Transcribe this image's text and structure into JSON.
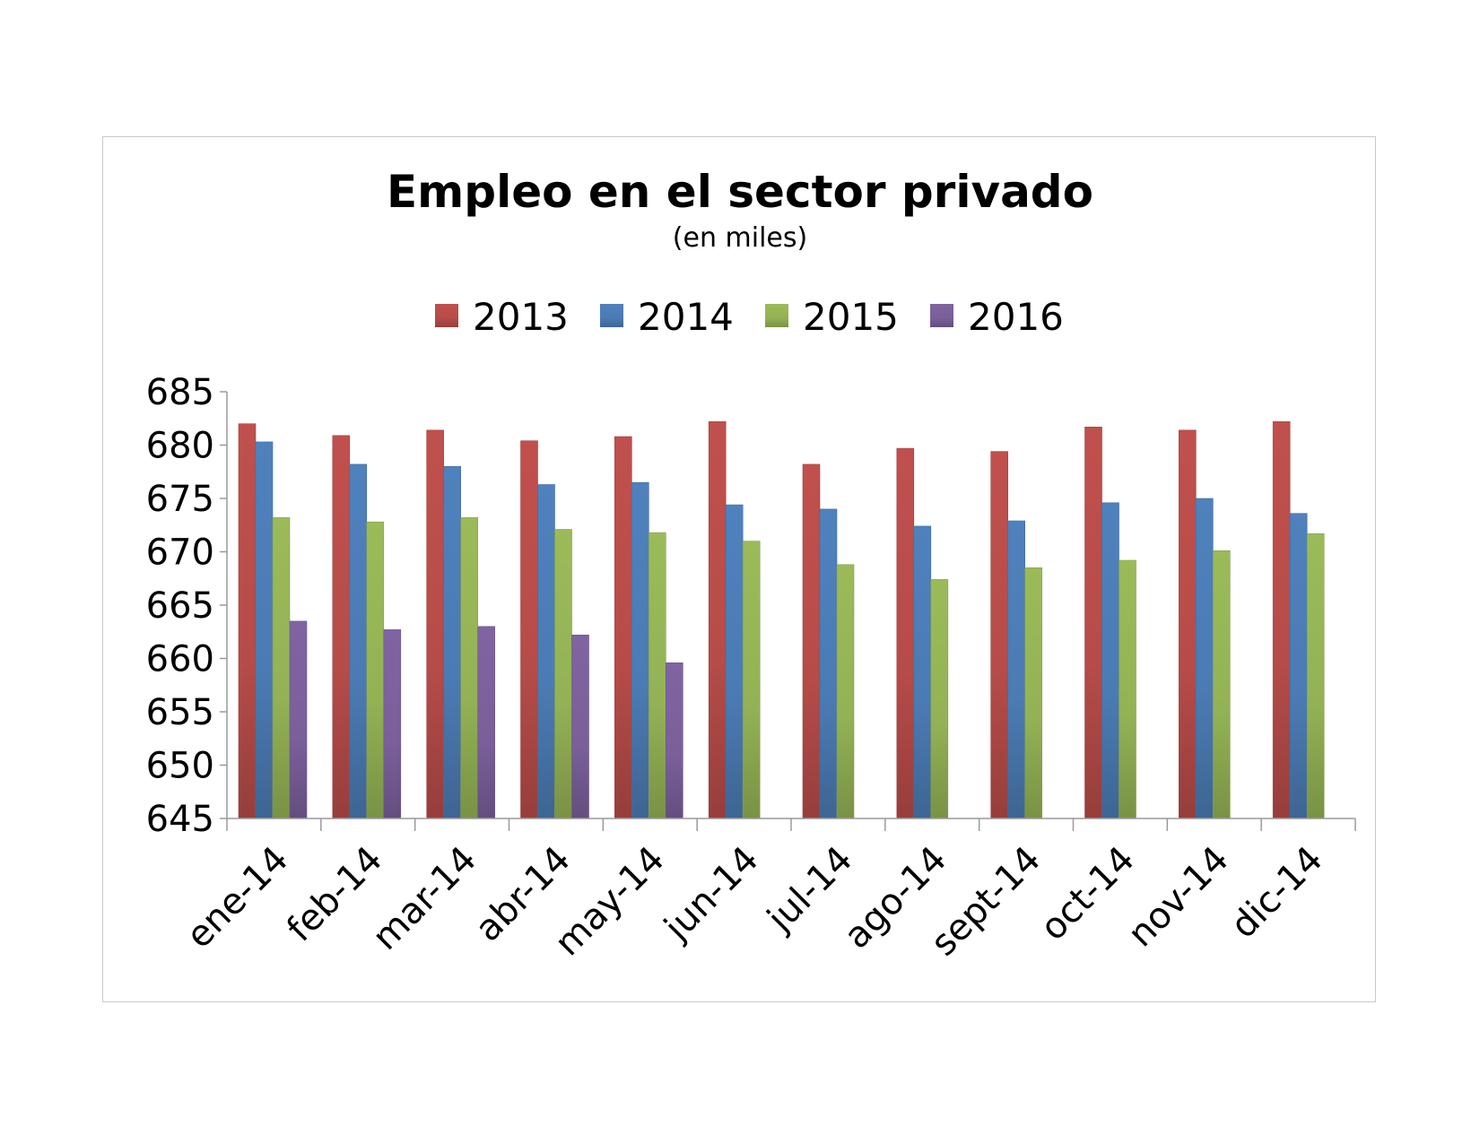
{
  "chart_data": {
    "type": "bar",
    "title": "Empleo en el sector privado",
    "subtitle": "(en miles)",
    "xlabel": "",
    "ylabel": "",
    "ylim": [
      645,
      685
    ],
    "yticks": [
      645,
      650,
      655,
      660,
      665,
      670,
      675,
      680,
      685
    ],
    "grid": false,
    "legend_position": "top",
    "categories": [
      "ene-14",
      "feb-14",
      "mar-14",
      "abr-14",
      "may-14",
      "jun-14",
      "jul-14",
      "ago-14",
      "sept-14",
      "oct-14",
      "nov-14",
      "dic-14"
    ],
    "series": [
      {
        "name": "2013",
        "color": "#c0504d",
        "values": [
          682.0,
          680.9,
          681.4,
          680.4,
          680.8,
          682.2,
          678.2,
          679.7,
          679.4,
          681.7,
          681.4,
          682.2
        ]
      },
      {
        "name": "2014",
        "color": "#4f81bd",
        "values": [
          680.3,
          678.2,
          678.0,
          676.3,
          676.5,
          674.4,
          674.0,
          672.4,
          672.9,
          674.6,
          675.0,
          673.6
        ]
      },
      {
        "name": "2015",
        "color": "#9bbb59",
        "values": [
          673.2,
          672.8,
          673.2,
          672.1,
          671.8,
          671.0,
          668.8,
          667.4,
          668.5,
          669.2,
          670.1,
          671.7
        ]
      },
      {
        "name": "2016",
        "color": "#8064a2",
        "values": [
          663.5,
          662.7,
          663.0,
          662.2,
          659.6,
          null,
          null,
          null,
          null,
          null,
          null,
          null
        ]
      }
    ]
  }
}
